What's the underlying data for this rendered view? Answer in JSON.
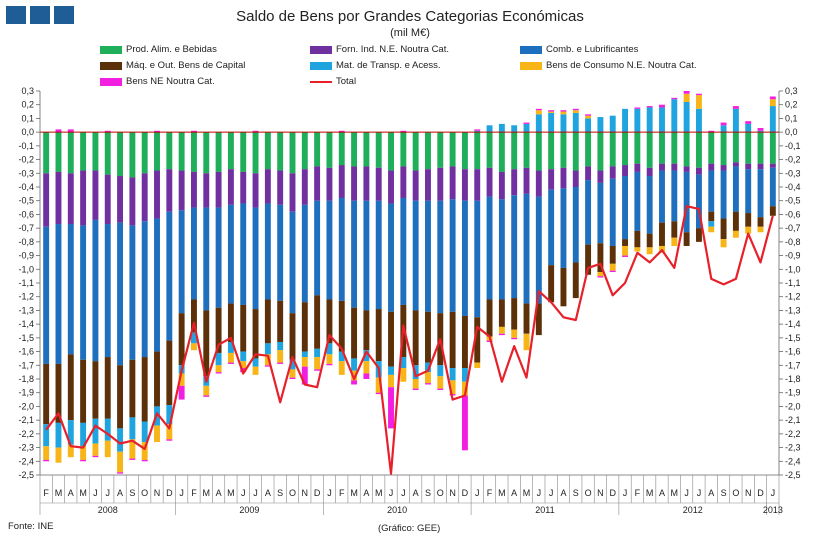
{
  "chart_data": {
    "type": "bar",
    "stacked": true,
    "title": "Saldo de Bens por Grandes Categorias Económicas",
    "subtitle": "(mil M€)",
    "ylim": [
      -2.5,
      0.3
    ],
    "yticks": [
      "0,3",
      "0,2",
      "0,1",
      "0,0",
      "-0,1",
      "-0,2",
      "-0,3",
      "-0,4",
      "-0,5",
      "-0,6",
      "-0,7",
      "-0,8",
      "-0,9",
      "-1,0",
      "-1,1",
      "-1,2",
      "-1,3",
      "-1,4",
      "-1,5",
      "-1,6",
      "-1,7",
      "-1,8",
      "-1,9",
      "-2,0",
      "-2,1",
      "-2,2",
      "-2,3",
      "-2,4",
      "-2,5"
    ],
    "categories": [
      "F",
      "M",
      "A",
      "M",
      "J",
      "J",
      "A",
      "S",
      "O",
      "N",
      "D",
      "J",
      "F",
      "M",
      "A",
      "M",
      "J",
      "J",
      "A",
      "S",
      "O",
      "N",
      "D",
      "J",
      "F",
      "M",
      "A",
      "M",
      "J",
      "J",
      "A",
      "S",
      "O",
      "N",
      "D",
      "J",
      "F",
      "M",
      "A",
      "M",
      "J",
      "J",
      "A",
      "S",
      "O",
      "N",
      "D",
      "J",
      "F",
      "M",
      "A",
      "M",
      "J",
      "J",
      "A",
      "S",
      "O",
      "N",
      "D",
      "J"
    ],
    "years": [
      {
        "label": "2008",
        "start": 0,
        "end": 10
      },
      {
        "label": "2009",
        "start": 11,
        "end": 22
      },
      {
        "label": "2010",
        "start": 23,
        "end": 34
      },
      {
        "label": "2011",
        "start": 35,
        "end": 46
      },
      {
        "label": "2012",
        "start": 47,
        "end": 58
      },
      {
        "label": "2013",
        "start": 59,
        "end": 59
      }
    ],
    "series": [
      {
        "name": "Prod. Alim. e Bebidas",
        "color": "#1fae5a",
        "values": [
          -0.3,
          -0.29,
          -0.3,
          -0.28,
          -0.28,
          -0.31,
          -0.32,
          -0.33,
          -0.3,
          -0.28,
          -0.27,
          -0.28,
          -0.29,
          -0.3,
          -0.29,
          -0.27,
          -0.29,
          -0.3,
          -0.27,
          -0.28,
          -0.3,
          -0.27,
          -0.25,
          -0.26,
          -0.24,
          -0.25,
          -0.25,
          -0.26,
          -0.28,
          -0.25,
          -0.28,
          -0.27,
          -0.26,
          -0.25,
          -0.27,
          -0.27,
          -0.26,
          -0.29,
          -0.27,
          -0.26,
          -0.28,
          -0.27,
          -0.26,
          -0.28,
          -0.25,
          -0.28,
          -0.25,
          -0.24,
          -0.23,
          -0.26,
          -0.23,
          -0.23,
          -0.25,
          -0.26,
          -0.23,
          -0.24,
          -0.22,
          -0.23,
          -0.23,
          -0.23
        ]
      },
      {
        "name": "Forn. Ind. N.E. Noutra Cat.",
        "color": "#7030a0",
        "values": [
          -0.39,
          -0.38,
          -0.37,
          -0.4,
          -0.36,
          -0.36,
          -0.34,
          -0.35,
          -0.35,
          -0.35,
          -0.31,
          -0.29,
          -0.26,
          -0.25,
          -0.26,
          -0.26,
          -0.23,
          -0.25,
          -0.25,
          -0.25,
          -0.28,
          -0.26,
          -0.25,
          -0.24,
          -0.24,
          -0.25,
          -0.25,
          -0.24,
          -0.24,
          -0.23,
          -0.22,
          -0.23,
          -0.24,
          -0.24,
          -0.23,
          -0.23,
          -0.21,
          -0.2,
          -0.19,
          -0.19,
          -0.19,
          -0.15,
          -0.15,
          -0.12,
          -0.1,
          -0.09,
          -0.09,
          -0.08,
          -0.06,
          -0.06,
          -0.05,
          -0.05,
          -0.04,
          -0.05,
          -0.05,
          -0.04,
          -0.03,
          -0.04,
          -0.04,
          -0.03
        ]
      },
      {
        "name": "Comb. e Lubrificantes",
        "color": "#1f6fbf",
        "values": [
          -1.0,
          -1.02,
          -0.95,
          -0.98,
          -1.03,
          -0.97,
          -1.04,
          -0.98,
          -0.99,
          -0.97,
          -0.94,
          -0.75,
          -0.67,
          -0.75,
          -0.73,
          -0.72,
          -0.74,
          -0.74,
          -0.7,
          -0.7,
          -0.74,
          -0.71,
          -0.69,
          -0.72,
          -0.75,
          -0.78,
          -0.8,
          -0.79,
          -0.79,
          -0.78,
          -0.8,
          -0.81,
          -0.82,
          -0.82,
          -0.84,
          -0.85,
          -0.75,
          -0.73,
          -0.75,
          -0.8,
          -0.78,
          -0.55,
          -0.58,
          -0.55,
          -0.47,
          -0.44,
          -0.49,
          -0.46,
          -0.43,
          -0.42,
          -0.38,
          -0.37,
          -0.44,
          -0.39,
          -0.3,
          -0.35,
          -0.33,
          -0.32,
          -0.35,
          -0.28
        ]
      },
      {
        "name": "Máq. e Out. Bens de Capital",
        "color": "#5c3008",
        "values": [
          -0.44,
          -0.43,
          -0.48,
          -0.46,
          -0.42,
          -0.45,
          -0.46,
          -0.42,
          -0.47,
          -0.4,
          -0.47,
          -0.38,
          -0.24,
          -0.48,
          -0.33,
          -0.28,
          -0.34,
          -0.36,
          -0.32,
          -0.3,
          -0.34,
          -0.36,
          -0.39,
          -0.32,
          -0.37,
          -0.37,
          -0.29,
          -0.38,
          -0.4,
          -0.38,
          -0.4,
          -0.37,
          -0.38,
          -0.41,
          -0.38,
          -0.33,
          -0.27,
          -0.2,
          -0.23,
          -0.22,
          -0.23,
          -0.27,
          -0.28,
          -0.26,
          -0.22,
          -0.21,
          -0.13,
          -0.05,
          -0.12,
          -0.1,
          -0.17,
          -0.12,
          -0.1,
          -0.1,
          -0.07,
          -0.15,
          -0.14,
          -0.1,
          -0.07,
          -0.07
        ]
      },
      {
        "name": "Mat. de Transp. e Acess.",
        "color": "#1fa4e0",
        "values": [
          -0.16,
          -0.18,
          -0.18,
          -0.17,
          -0.18,
          -0.16,
          -0.17,
          -0.16,
          -0.15,
          -0.14,
          -0.14,
          -0.06,
          -0.08,
          -0.07,
          -0.09,
          -0.08,
          -0.07,
          -0.06,
          -0.08,
          -0.06,
          -0.07,
          -0.04,
          -0.06,
          -0.08,
          -0.07,
          -0.09,
          -0.08,
          -0.12,
          -0.06,
          -0.08,
          -0.1,
          -0.07,
          -0.08,
          -0.09,
          -0.1,
          0.01,
          0.05,
          0.06,
          0.05,
          0.06,
          0.13,
          0.14,
          0.13,
          0.14,
          0.1,
          0.11,
          0.12,
          0.17,
          0.17,
          0.18,
          0.18,
          0.24,
          0.22,
          0.17,
          -0.04,
          0.05,
          0.17,
          0.06,
          0.01,
          0.19
        ]
      },
      {
        "name": "Bens de Consumo N.E. Noutra Cat.",
        "color": "#f7b518",
        "values": [
          -0.1,
          -0.11,
          -0.09,
          -0.1,
          -0.09,
          -0.12,
          -0.15,
          -0.14,
          -0.13,
          -0.12,
          -0.11,
          -0.09,
          -0.05,
          -0.07,
          -0.05,
          -0.07,
          -0.05,
          -0.06,
          -0.08,
          -0.09,
          -0.06,
          -0.07,
          -0.09,
          -0.07,
          -0.1,
          -0.07,
          -0.09,
          -0.11,
          -0.09,
          -0.1,
          -0.07,
          -0.08,
          -0.09,
          -0.1,
          -0.1,
          -0.04,
          -0.03,
          -0.05,
          -0.06,
          -0.12,
          0.03,
          0.01,
          0.02,
          0.02,
          0.02,
          -0.03,
          -0.05,
          -0.07,
          -0.03,
          -0.05,
          -0.05,
          -0.06,
          0.06,
          0.1,
          -0.04,
          -0.06,
          -0.05,
          -0.05,
          -0.04,
          0.05
        ]
      },
      {
        "name": "Bens NE Noutra Cat.",
        "color": "#f21fe0",
        "values": [
          -0.01,
          0.02,
          0.02,
          -0.01,
          -0.01,
          0.01,
          -0.01,
          -0.01,
          -0.01,
          0.01,
          -0.01,
          -0.1,
          0.01,
          -0.01,
          -0.01,
          -0.01,
          -0.03,
          0.01,
          -0.01,
          -0.01,
          -0.01,
          -0.13,
          -0.01,
          -0.01,
          0.01,
          -0.03,
          -0.04,
          -0.01,
          -0.3,
          0.01,
          -0.01,
          -0.01,
          -0.01,
          -0.01,
          -0.4,
          0.01,
          -0.01,
          -0.01,
          -0.01,
          0.01,
          0.01,
          0.01,
          0.01,
          0.01,
          0.01,
          -0.01,
          -0.01,
          -0.01,
          0.01,
          0.01,
          0.02,
          0.01,
          0.02,
          0.01,
          0.01,
          0.02,
          0.02,
          0.02,
          0.02,
          0.02
        ]
      }
    ],
    "total": {
      "name": "Total",
      "color": "#e8202a",
      "values": [
        -2.17,
        -2.05,
        -2.29,
        -2.3,
        -2.14,
        -2.2,
        -2.27,
        -2.25,
        -2.31,
        -2.05,
        -2.16,
        -1.74,
        -1.39,
        -1.82,
        -1.55,
        -1.5,
        -1.76,
        -1.62,
        -1.63,
        -1.97,
        -1.64,
        -1.84,
        -1.86,
        -1.48,
        -1.58,
        -1.8,
        -1.6,
        -1.72,
        -2.49,
        -1.41,
        -1.78,
        -1.74,
        -1.51,
        -1.95,
        -1.92,
        -1.42,
        -1.49,
        -1.82,
        -1.56,
        -1.79,
        -1.16,
        -1.24,
        -1.35,
        -1.37,
        -0.99,
        -0.96,
        -1.19,
        -1.1,
        -0.88,
        -0.95,
        -0.86,
        -0.99,
        -0.54,
        -0.56,
        -1.07,
        -1.11,
        -1.07,
        -0.74,
        -0.95,
        -0.61
      ]
    },
    "legend_rows": [
      [
        "Prod. Alim. e Bebidas",
        "Forn. Ind. N.E. Noutra Cat.",
        "Comb. e Lubrificantes"
      ],
      [
        "Máq. e Out. Bens de Capital",
        "Mat. de Transp. e Acess.",
        "Bens de Consumo N.E. Noutra Cat."
      ],
      [
        "Bens NE Noutra Cat.",
        "Total"
      ]
    ]
  },
  "source_note": "Fonte: INE",
  "credit_note": "(Gráfico: GEE)"
}
